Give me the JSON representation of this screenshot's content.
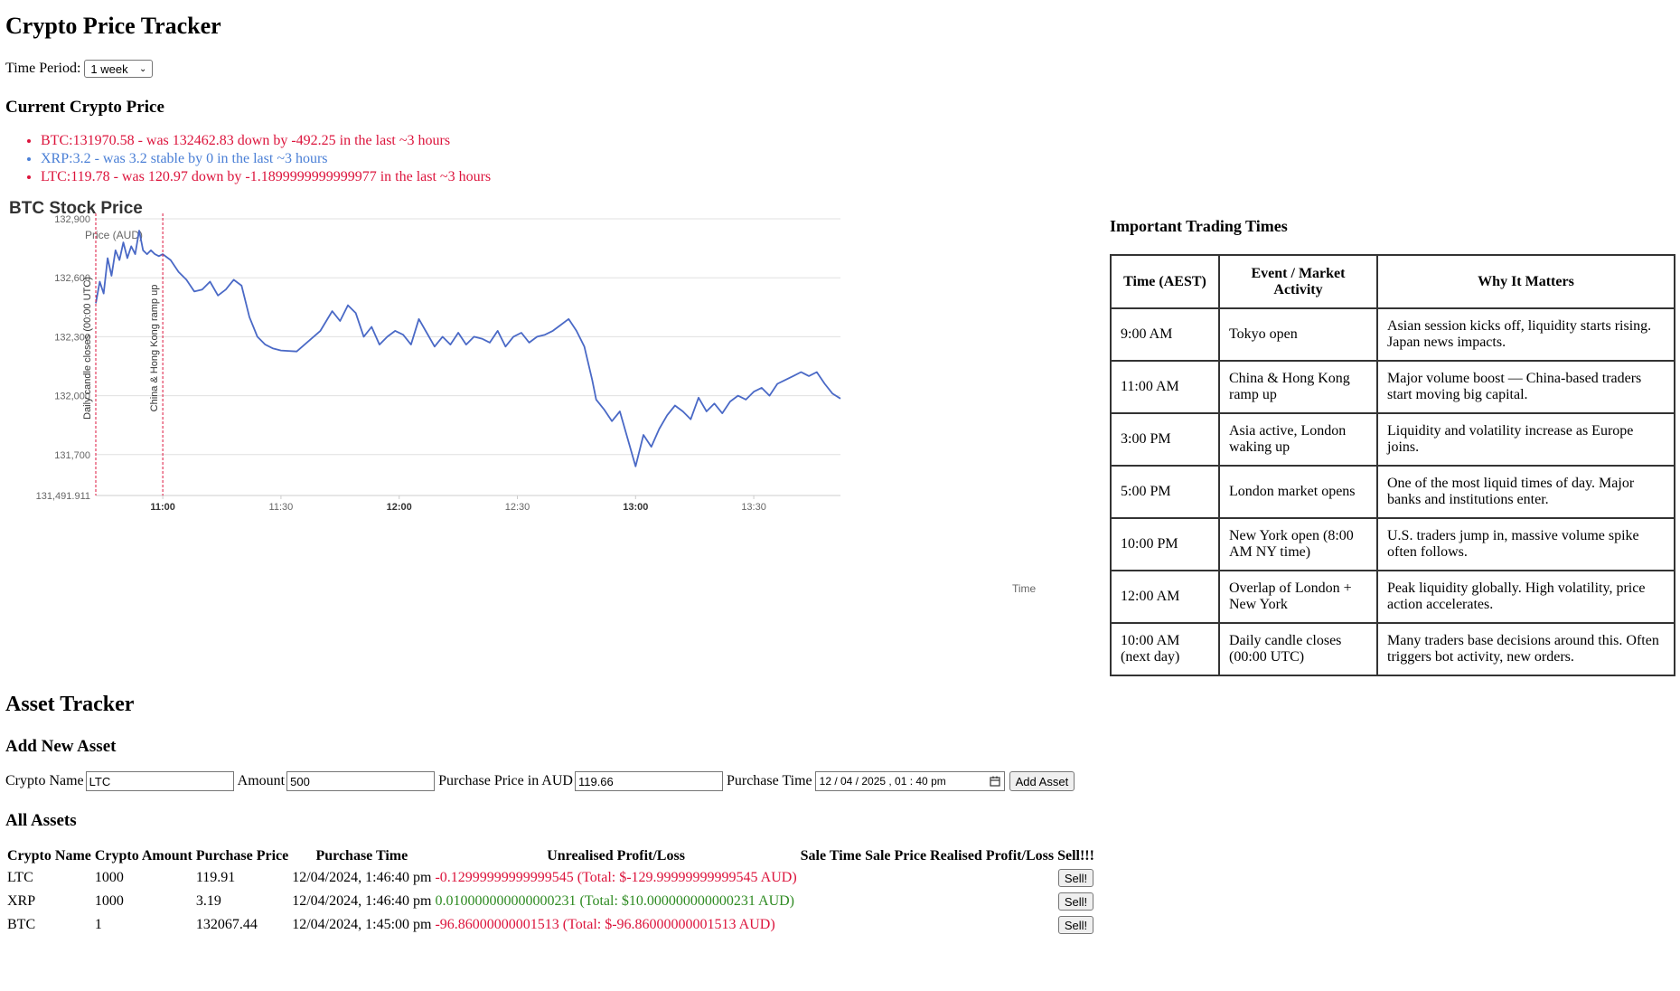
{
  "header": {
    "title": "Crypto Price Tracker"
  },
  "time_period": {
    "label": "Time Period:",
    "selected": "1 week"
  },
  "current_prices": {
    "heading": "Current Crypto Price",
    "items": [
      {
        "text": "BTC:131970.58 - was 132462.83 down by -492.25 in the last ~3 hours",
        "color": "#dc143c"
      },
      {
        "text": "XRP:3.2 - was 3.2 stable by 0 in the last ~3 hours",
        "color": "#4a7fd6"
      },
      {
        "text": "LTC:119.78 - was 120.97 down by -1.1899999999999977 in the last ~3 hours",
        "color": "#dc143c"
      }
    ]
  },
  "chart_data": {
    "type": "line",
    "title": "BTC Stock Price",
    "ylabel": "Price (AUD)",
    "xlabel": "Time",
    "ylim": [
      131491.911,
      132900
    ],
    "xlim": [
      "10:43",
      "13:52"
    ],
    "y_ticks": [
      "131,491.911",
      "131,700",
      "132,000",
      "132,300",
      "132,600",
      "132,900"
    ],
    "x_ticks": [
      "11:00",
      "11:30",
      "12:00",
      "12:30",
      "13:00",
      "13:30"
    ],
    "bold_x_ticks": [
      "11:00",
      "12:00",
      "13:00"
    ],
    "grid": true,
    "line_color": "#4a69c6",
    "annotations": [
      {
        "time": "10:43",
        "label": "Daily candle closes (00:00 UTC)",
        "color": "#dc143c"
      },
      {
        "time": "11:00",
        "label": "China & Hong Kong ramp up",
        "color": "#dc143c"
      }
    ],
    "series": [
      {
        "points": [
          [
            "10:43",
            132470
          ],
          [
            "10:44",
            132580
          ],
          [
            "10:45",
            132520
          ],
          [
            "10:46",
            132700
          ],
          [
            "10:47",
            132610
          ],
          [
            "10:48",
            132740
          ],
          [
            "10:49",
            132690
          ],
          [
            "10:50",
            132780
          ],
          [
            "10:51",
            132700
          ],
          [
            "10:52",
            132760
          ],
          [
            "10:53",
            132720
          ],
          [
            "10:54",
            132840
          ],
          [
            "10:55",
            132740
          ],
          [
            "10:56",
            132720
          ],
          [
            "10:57",
            132740
          ],
          [
            "10:58",
            132720
          ],
          [
            "10:59",
            132710
          ],
          [
            "11:00",
            132720
          ],
          [
            "11:02",
            132690
          ],
          [
            "11:04",
            132630
          ],
          [
            "11:06",
            132590
          ],
          [
            "11:08",
            132530
          ],
          [
            "11:10",
            132540
          ],
          [
            "11:12",
            132580
          ],
          [
            "11:14",
            132510
          ],
          [
            "11:16",
            132540
          ],
          [
            "11:18",
            132590
          ],
          [
            "11:20",
            132560
          ],
          [
            "11:22",
            132400
          ],
          [
            "11:24",
            132300
          ],
          [
            "11:26",
            132260
          ],
          [
            "11:28",
            132240
          ],
          [
            "11:30",
            132230
          ],
          [
            "11:34",
            132225
          ],
          [
            "11:40",
            132330
          ],
          [
            "11:43",
            132430
          ],
          [
            "11:45",
            132380
          ],
          [
            "11:47",
            132460
          ],
          [
            "11:49",
            132420
          ],
          [
            "11:51",
            132300
          ],
          [
            "11:53",
            132350
          ],
          [
            "11:55",
            132260
          ],
          [
            "11:57",
            132300
          ],
          [
            "11:59",
            132330
          ],
          [
            "12:01",
            132310
          ],
          [
            "12:03",
            132260
          ],
          [
            "12:05",
            132390
          ],
          [
            "12:07",
            132320
          ],
          [
            "12:09",
            132250
          ],
          [
            "12:11",
            132300
          ],
          [
            "12:13",
            132260
          ],
          [
            "12:15",
            132320
          ],
          [
            "12:17",
            132260
          ],
          [
            "12:19",
            132300
          ],
          [
            "12:21",
            132290
          ],
          [
            "12:23",
            132270
          ],
          [
            "12:25",
            132330
          ],
          [
            "12:27",
            132250
          ],
          [
            "12:29",
            132300
          ],
          [
            "12:31",
            132320
          ],
          [
            "12:33",
            132270
          ],
          [
            "12:35",
            132300
          ],
          [
            "12:37",
            132310
          ],
          [
            "12:39",
            132330
          ],
          [
            "12:41",
            132360
          ],
          [
            "12:43",
            132390
          ],
          [
            "12:45",
            132330
          ],
          [
            "12:47",
            132250
          ],
          [
            "12:49",
            132080
          ],
          [
            "12:50",
            131980
          ],
          [
            "12:52",
            131930
          ],
          [
            "12:54",
            131870
          ],
          [
            "12:56",
            131920
          ],
          [
            "12:58",
            131780
          ],
          [
            "13:00",
            131640
          ],
          [
            "13:02",
            131800
          ],
          [
            "13:04",
            131740
          ],
          [
            "13:06",
            131830
          ],
          [
            "13:08",
            131900
          ],
          [
            "13:10",
            131950
          ],
          [
            "13:12",
            131920
          ],
          [
            "13:14",
            131880
          ],
          [
            "13:16",
            131990
          ],
          [
            "13:18",
            131920
          ],
          [
            "13:20",
            131960
          ],
          [
            "13:22",
            131910
          ],
          [
            "13:24",
            131970
          ],
          [
            "13:26",
            132000
          ],
          [
            "13:28",
            131980
          ],
          [
            "13:30",
            132020
          ],
          [
            "13:32",
            132040
          ],
          [
            "13:34",
            132000
          ],
          [
            "13:36",
            132060
          ],
          [
            "13:38",
            132080
          ],
          [
            "13:40",
            132100
          ],
          [
            "13:42",
            132120
          ],
          [
            "13:44",
            132100
          ],
          [
            "13:46",
            132120
          ],
          [
            "13:48",
            132060
          ],
          [
            "13:50",
            132010
          ],
          [
            "13:52",
            131985
          ]
        ]
      }
    ]
  },
  "trading_times": {
    "heading": "Important Trading Times",
    "columns": [
      "Time (AEST)",
      "Event / Market Activity",
      "Why It Matters"
    ],
    "rows": [
      [
        "9:00 AM",
        "Tokyo open",
        "Asian session kicks off, liquidity starts rising. Japan news impacts."
      ],
      [
        "11:00 AM",
        "China & Hong Kong ramp up",
        "Major volume boost — China-based traders start moving big capital."
      ],
      [
        "3:00 PM",
        "Asia active, London waking up",
        "Liquidity and volatility increase as Europe joins."
      ],
      [
        "5:00 PM",
        "London market opens",
        "One of the most liquid times of day. Major banks and institutions enter."
      ],
      [
        "10:00 PM",
        "New York open (8:00 AM NY time)",
        "U.S. traders jump in, massive volume spike often follows."
      ],
      [
        "12:00 AM",
        "Overlap of London + New York",
        "Peak liquidity globally. High volatility, price action accelerates."
      ],
      [
        "10:00 AM (next day)",
        "Daily candle closes (00:00 UTC)",
        "Many traders base decisions around this. Often triggers bot activity, new orders."
      ]
    ]
  },
  "asset_tracker": {
    "heading": "Asset Tracker",
    "add_heading": "Add New Asset",
    "crypto_name_label": "Crypto Name",
    "crypto_name_value": "LTC",
    "amount_label": "Amount",
    "amount_value": "500",
    "purchase_price_label": "Purchase Price in AUD",
    "purchase_price_value": "119.66",
    "purchase_time_label": "Purchase Time",
    "purchase_time_value": "12 / 04 / 2025 ,  01 : 40  pm",
    "add_button": "Add Asset",
    "all_heading": "All Assets",
    "columns": [
      "Crypto Name",
      "Crypto Amount",
      "Purchase Price",
      "Purchase Time",
      "Unrealised Profit/Loss",
      "Sale Time",
      "Sale Price",
      "Realised Profit/Loss",
      "Sell!!!"
    ],
    "rows": [
      {
        "name": "LTC",
        "amount": "1000",
        "price": "119.91",
        "time": "12/04/2024, 1:46:40 pm",
        "pl": "-0.12999999999999545 (Total: $-129.99999999999545 AUD)",
        "pl_color": "#dc143c",
        "sell": "Sell!"
      },
      {
        "name": "XRP",
        "amount": "1000",
        "price": "3.19",
        "time": "12/04/2024, 1:46:40 pm",
        "pl": "0.010000000000000231 (Total: $10.000000000000231 AUD)",
        "pl_color": "#2e8b22",
        "sell": "Sell!"
      },
      {
        "name": "BTC",
        "amount": "1",
        "price": "132067.44",
        "time": "12/04/2024, 1:45:00 pm",
        "pl": "-96.86000000001513 (Total: $-96.86000000001513 AUD)",
        "pl_color": "#dc143c",
        "sell": "Sell!"
      }
    ]
  }
}
